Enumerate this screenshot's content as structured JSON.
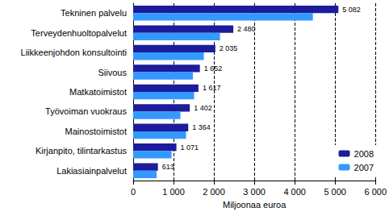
{
  "chart_data": {
    "type": "bar",
    "orientation": "horizontal",
    "categories": [
      "Tekninen palvelu",
      "Terveydenhuoltopalvelut",
      "Liikkeenjohdon konsultointi",
      "Siivous",
      "Matkatoimistot",
      "Työvoiman vuokraus",
      "Mainostoimistot",
      "Kirjanpito, tilintarkastus",
      "Lakiasiainpalvelut"
    ],
    "series": [
      {
        "name": "2008",
        "color": "#1c1c9c",
        "data_labels": true,
        "values": [
          5082,
          2480,
          2035,
          1652,
          1617,
          1402,
          1364,
          1071,
          613
        ],
        "value_labels": [
          "5 082",
          "2 480",
          "2 035",
          "1 652",
          "1 617",
          "1 402",
          "1 364",
          "1 071",
          "613"
        ]
      },
      {
        "name": "2007",
        "color": "#3399ff",
        "values": [
          4450,
          2150,
          1750,
          1480,
          1510,
          1170,
          1310,
          950,
          580
        ]
      }
    ],
    "x_label": "Miljoonaa euroa",
    "xlim": [
      0,
      6000
    ],
    "xticks": [
      0,
      {
        "value": 1000,
        "label": "1 000"
      },
      {
        "value": 2000,
        "label": "2 000"
      },
      {
        "value": 3000,
        "label": "3 000"
      },
      {
        "value": 4000,
        "label": "4 000"
      },
      {
        "value": 5000,
        "label": "5 000"
      },
      {
        "value": 6000,
        "label": "6 000"
      }
    ],
    "grid": true,
    "legend": "lower right"
  }
}
